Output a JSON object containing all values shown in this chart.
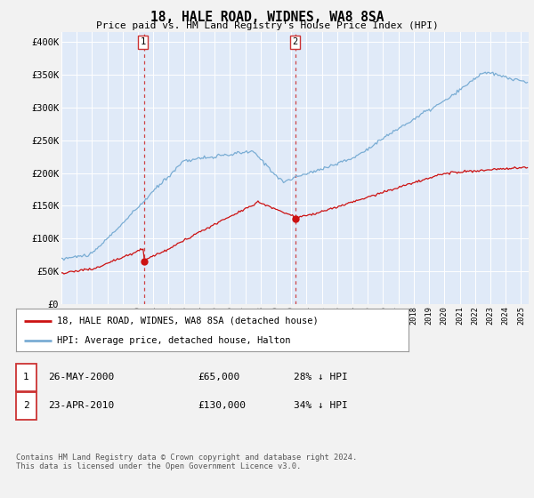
{
  "title": "18, HALE ROAD, WIDNES, WA8 8SA",
  "subtitle": "Price paid vs. HM Land Registry's House Price Index (HPI)",
  "ylabel_ticks": [
    "£0",
    "£50K",
    "£100K",
    "£150K",
    "£200K",
    "£250K",
    "£300K",
    "£350K",
    "£400K"
  ],
  "ytick_values": [
    0,
    50000,
    100000,
    150000,
    200000,
    250000,
    300000,
    350000,
    400000
  ],
  "ylim": [
    0,
    415000
  ],
  "xlim_start": 1995.0,
  "xlim_end": 2025.5,
  "hpi_color": "#7aadd4",
  "sale_color": "#cc1111",
  "dashed_color": "#cc3333",
  "bg_color": "#f2f2f2",
  "plot_bg": "#e0eaf8",
  "grid_color": "#c8d4e8",
  "sale1_x": 2000.38,
  "sale1_y": 65000,
  "sale2_x": 2010.3,
  "sale2_y": 130000,
  "legend_label_red": "18, HALE ROAD, WIDNES, WA8 8SA (detached house)",
  "legend_label_blue": "HPI: Average price, detached house, Halton",
  "table_row1_num": "1",
  "table_row1_date": "26-MAY-2000",
  "table_row1_price": "£65,000",
  "table_row1_hpi": "28% ↓ HPI",
  "table_row2_num": "2",
  "table_row2_date": "23-APR-2010",
  "table_row2_price": "£130,000",
  "table_row2_hpi": "34% ↓ HPI",
  "footnote": "Contains HM Land Registry data © Crown copyright and database right 2024.\nThis data is licensed under the Open Government Licence v3.0."
}
